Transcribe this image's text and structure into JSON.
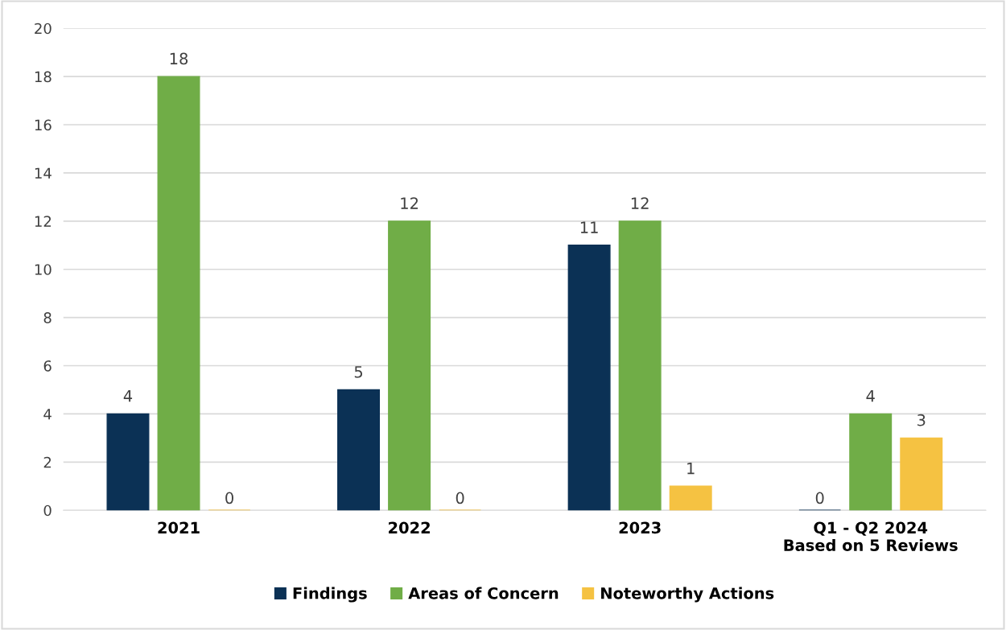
{
  "chart_data": {
    "type": "bar",
    "categories": [
      "2021",
      "2022",
      "2023",
      "Q1 - Q2 2024\nBased on 5 Reviews"
    ],
    "series": [
      {
        "name": "Findings",
        "color": "#0b3155",
        "values": [
          4,
          5,
          11,
          0
        ]
      },
      {
        "name": "Areas of Concern",
        "color": "#70ad47",
        "values": [
          18,
          12,
          12,
          4
        ]
      },
      {
        "name": "Noteworthy Actions",
        "color": "#f5c242",
        "values": [
          0,
          0,
          1,
          3
        ]
      }
    ],
    "ylim": [
      0,
      20
    ],
    "yticks": [
      0,
      2,
      4,
      6,
      8,
      10,
      12,
      14,
      16,
      18,
      20
    ],
    "grid": "y",
    "legend": "bottom",
    "data_labels": true
  }
}
